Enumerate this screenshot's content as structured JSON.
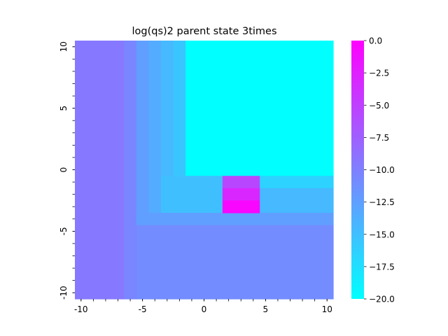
{
  "chart_data": {
    "type": "heatmap",
    "title": "log(qs)2 parent state  3times",
    "xlabel": "",
    "ylabel": "",
    "x_range": [
      -10.5,
      10.5
    ],
    "y_range": [
      -10.5,
      10.5
    ],
    "x_ticks": [
      -10,
      -5,
      0,
      5,
      10
    ],
    "x_tick_labels": [
      "-10",
      "-5",
      "0",
      "5",
      "10"
    ],
    "y_ticks": [
      10,
      5,
      0,
      -5,
      -10
    ],
    "y_tick_labels": [
      "10",
      "5",
      "0",
      "-5",
      "-10"
    ],
    "colormap": "cool",
    "colormap_endpoints": {
      "min": "#00ffff",
      "max": "#ff00ff"
    },
    "vmin": -20.0,
    "vmax": 0.0,
    "colorbar_ticks": [
      0.0,
      -2.5,
      -5.0,
      -7.5,
      -10.0,
      -12.5,
      -15.0,
      -17.5,
      -20.0
    ],
    "colorbar_tick_labels": [
      "0.0",
      "−2.5",
      "−5.0",
      "−7.5",
      "−10.0",
      "−12.5",
      "−15.0",
      "−17.5",
      "−20.0"
    ],
    "grid": false,
    "cells": [
      {
        "x": [
          -10,
          -7
        ],
        "y": [
          -10,
          10
        ],
        "value": -9.5
      },
      {
        "x": [
          -6,
          -6
        ],
        "y": [
          -10,
          10
        ],
        "value": -10.5
      },
      {
        "x": [
          -5,
          -5
        ],
        "y": [
          -4,
          10
        ],
        "value": -12.5
      },
      {
        "x": [
          -4,
          -4
        ],
        "y": [
          -4,
          10
        ],
        "value": -13.5
      },
      {
        "x": [
          -3,
          -3
        ],
        "y": [
          -3,
          10
        ],
        "value": -14.5
      },
      {
        "x": [
          -2,
          -2
        ],
        "y": [
          -2,
          10
        ],
        "value": -15.5
      },
      {
        "x": [
          -1,
          10
        ],
        "y": [
          0,
          10
        ],
        "value": -20.0
      },
      {
        "x": [
          -1,
          10
        ],
        "y": [
          -1,
          -1
        ],
        "value": -16.5
      },
      {
        "x": [
          -3,
          1
        ],
        "y": [
          -3,
          -1
        ],
        "value": -15.0
      },
      {
        "x": [
          5,
          10
        ],
        "y": [
          -3,
          -2
        ],
        "value": -14.5
      },
      {
        "x": [
          -5,
          10
        ],
        "y": [
          -4,
          -4
        ],
        "value": -12.5
      },
      {
        "x": [
          -5,
          10
        ],
        "y": [
          -10,
          -5
        ],
        "value": -11.0
      },
      {
        "x": [
          2,
          4
        ],
        "y": [
          -1,
          -1
        ],
        "value": -5.5
      },
      {
        "x": [
          2,
          4
        ],
        "y": [
          -2,
          -2
        ],
        "value": -3.0
      },
      {
        "x": [
          2,
          4
        ],
        "y": [
          -3,
          -3
        ],
        "value": -0.5
      }
    ]
  }
}
